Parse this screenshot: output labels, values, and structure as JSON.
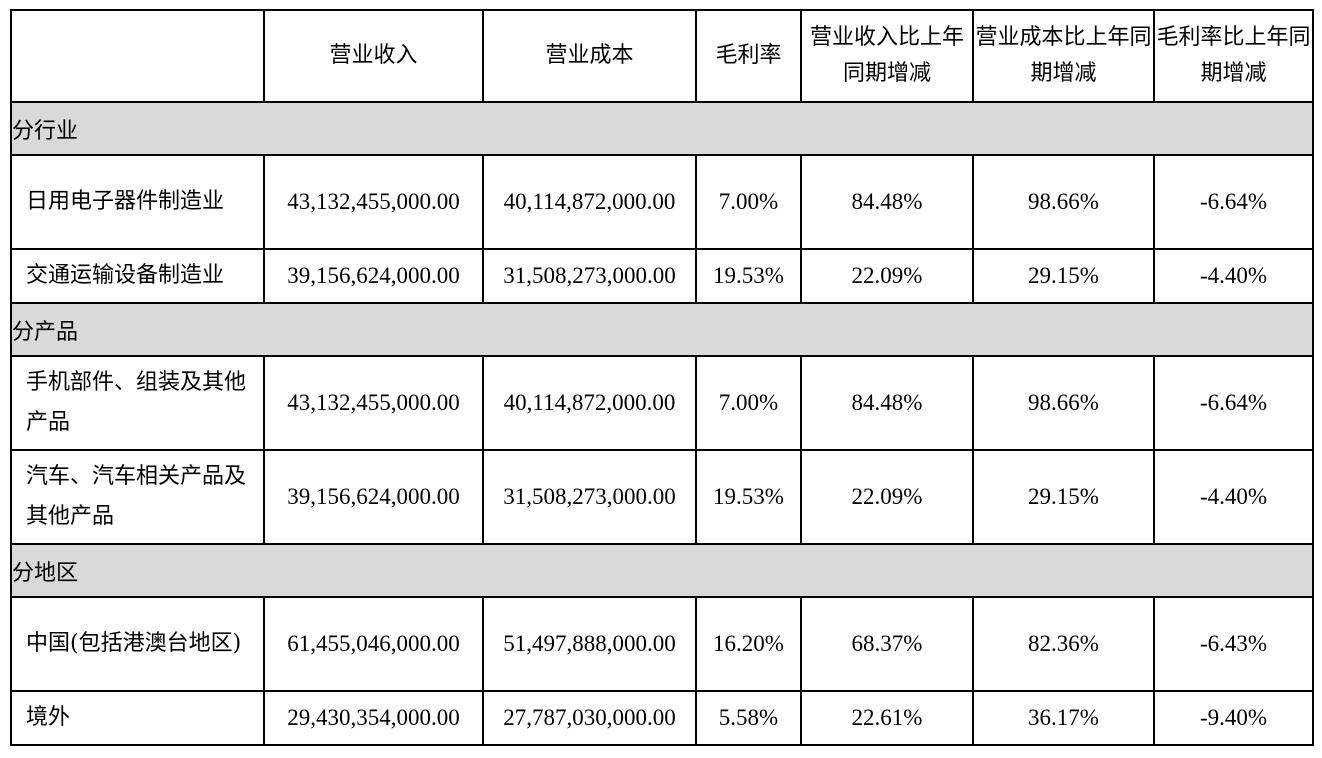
{
  "headers": [
    "",
    "营业收入",
    "营业成本",
    "毛利率",
    "营业收入比上年同期增减",
    "营业成本比上年同期增减",
    "毛利率比上年同期增减"
  ],
  "sections": [
    {
      "title": "分行业",
      "rows": [
        {
          "label": "日用电子器件制造业",
          "revenue": "43,132,455,000.00",
          "cost": "40,114,872,000.00",
          "margin": "7.00%",
          "revenue_yoy": "84.48%",
          "cost_yoy": "98.66%",
          "margin_yoy": "-6.64%"
        },
        {
          "label": "交通运输设备制造业",
          "revenue": "39,156,624,000.00",
          "cost": "31,508,273,000.00",
          "margin": "19.53%",
          "revenue_yoy": "22.09%",
          "cost_yoy": "29.15%",
          "margin_yoy": "-4.40%"
        }
      ]
    },
    {
      "title": "分产品",
      "rows": [
        {
          "label": "手机部件、组装及其他产品",
          "revenue": "43,132,455,000.00",
          "cost": "40,114,872,000.00",
          "margin": "7.00%",
          "revenue_yoy": "84.48%",
          "cost_yoy": "98.66%",
          "margin_yoy": "-6.64%"
        },
        {
          "label": "汽车、汽车相关产品及其他产品",
          "revenue": "39,156,624,000.00",
          "cost": "31,508,273,000.00",
          "margin": "19.53%",
          "revenue_yoy": "22.09%",
          "cost_yoy": "29.15%",
          "margin_yoy": "-4.40%"
        }
      ]
    },
    {
      "title": "分地区",
      "rows": [
        {
          "label": "中国(包括港澳台地区)",
          "revenue": "61,455,046,000.00",
          "cost": "51,497,888,000.00",
          "margin": "16.20%",
          "revenue_yoy": "68.37%",
          "cost_yoy": "82.36%",
          "margin_yoy": "-6.43%"
        },
        {
          "label": "境外",
          "revenue": "29,430,354,000.00",
          "cost": "27,787,030,000.00",
          "margin": "5.58%",
          "revenue_yoy": "22.61%",
          "cost_yoy": "36.17%",
          "margin_yoy": "-9.40%"
        }
      ]
    }
  ],
  "colors": {
    "section_background": "#d9d9d9",
    "border": "#000000",
    "text": "#000000"
  }
}
